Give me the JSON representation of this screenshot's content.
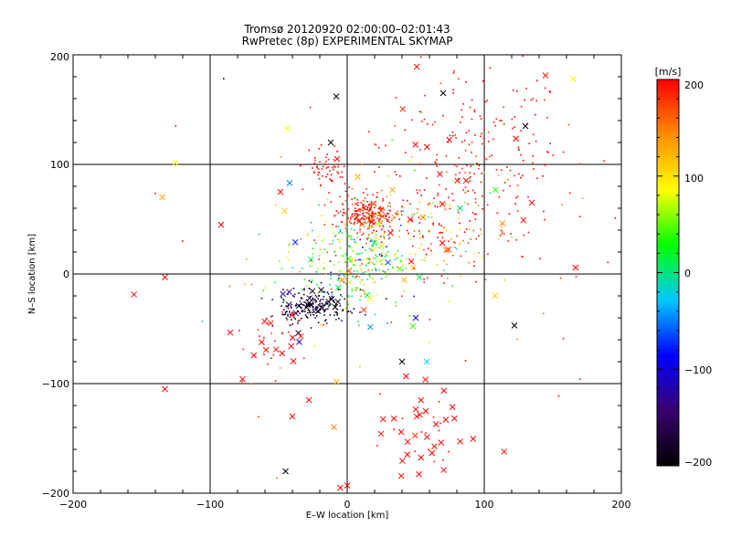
{
  "chart_data": {
    "type": "scatter",
    "title": "Tromsø 20120920 02:00:00–02:01:43",
    "subtitle": "RwPretec (8p) EXPERIMENTAL SKYMAP",
    "xlabel": "E–W location [km]",
    "ylabel": "N–S location [km]",
    "xlim": [
      -200,
      200
    ],
    "ylim": [
      -200,
      200
    ],
    "x_ticks": [
      "−200",
      "−100",
      "0",
      "100",
      "200"
    ],
    "y_ticks": [
      "−200",
      "−100",
      "0",
      "100",
      "200"
    ],
    "grid_lines": [
      -100,
      0,
      100
    ],
    "colorbar": {
      "label": "[m/s]",
      "range": [
        -200,
        200
      ],
      "ticks": [
        "−200",
        "−100",
        "0",
        "100",
        "200"
      ],
      "colors": [
        "#000000",
        "#3a0070",
        "#0000ff",
        "#00c8ff",
        "#00ff00",
        "#ffff00",
        "#ff8c00",
        "#ff0000"
      ]
    },
    "marker_types": [
      "dot",
      "cross"
    ],
    "clusters": [
      {
        "name": "northeast",
        "cx": 95,
        "cy": 100,
        "sx": 35,
        "sy": 45,
        "n": 260,
        "v_mean": 200,
        "v_sd": 12,
        "cross_frac": 0.06
      },
      {
        "name": "north-center",
        "cx": 15,
        "cy": 55,
        "sx": 12,
        "sy": 8,
        "n": 230,
        "v_mean": 195,
        "v_sd": 20,
        "cross_frac": 0.05
      },
      {
        "name": "north-west",
        "cx": -15,
        "cy": 95,
        "sx": 8,
        "sy": 10,
        "n": 60,
        "v_mean": 200,
        "v_sd": 8,
        "cross_frac": 0.05
      },
      {
        "name": "center",
        "cx": 5,
        "cy": 10,
        "sx": 22,
        "sy": 22,
        "n": 320,
        "v_mean": 40,
        "v_sd": 70,
        "cross_frac": 0.03
      },
      {
        "name": "east-mid",
        "cx": 60,
        "cy": 40,
        "sx": 30,
        "sy": 25,
        "n": 140,
        "v_mean": 140,
        "v_sd": 70,
        "cross_frac": 0.05
      },
      {
        "name": "southwest-dark",
        "cx": -25,
        "cy": -30,
        "sx": 14,
        "sy": 9,
        "n": 200,
        "v_mean": -175,
        "v_sd": 30,
        "cross_frac": 0.08
      },
      {
        "name": "southwest-arm",
        "cx": -55,
        "cy": -65,
        "sx": 12,
        "sy": 18,
        "n": 35,
        "v_mean": 200,
        "v_sd": 10,
        "cross_frac": 0.4
      },
      {
        "name": "south-east",
        "cx": 55,
        "cy": -140,
        "sx": 18,
        "sy": 22,
        "n": 45,
        "v_mean": 200,
        "v_sd": 10,
        "cross_frac": 0.6
      },
      {
        "name": "scatter",
        "cx": 20,
        "cy": 20,
        "sx": 80,
        "sy": 80,
        "n": 90,
        "v_mean": 160,
        "v_sd": 80,
        "cross_frac": 0.3
      }
    ],
    "notable_points": [
      {
        "x": -133,
        "y": -105,
        "v": 200,
        "marker": "cross"
      },
      {
        "x": -133,
        "y": -3,
        "v": 200,
        "marker": "cross"
      },
      {
        "x": -45,
        "y": -180,
        "v": -200,
        "marker": "cross"
      },
      {
        "x": -8,
        "y": 162,
        "v": -200,
        "marker": "cross"
      },
      {
        "x": -12,
        "y": 120,
        "v": -200,
        "marker": "cross"
      },
      {
        "x": 165,
        "y": 178,
        "v": 90,
        "marker": "cross"
      },
      {
        "x": 70,
        "y": 165,
        "v": -200,
        "marker": "cross"
      },
      {
        "x": 130,
        "y": 135,
        "v": -200,
        "marker": "cross"
      },
      {
        "x": 122,
        "y": -47,
        "v": -200,
        "marker": "cross"
      },
      {
        "x": 40,
        "y": -80,
        "v": -200,
        "marker": "cross"
      },
      {
        "x": -42,
        "y": 83,
        "v": -50,
        "marker": "cross"
      },
      {
        "x": -35,
        "y": -62,
        "v": -120,
        "marker": "cross"
      },
      {
        "x": 50,
        "y": -40,
        "v": -100,
        "marker": "cross"
      },
      {
        "x": 58,
        "y": -80,
        "v": -30,
        "marker": "cross"
      },
      {
        "x": 0,
        "y": -193,
        "v": 200,
        "marker": "cross"
      },
      {
        "x": -5,
        "y": -195,
        "v": 200,
        "marker": "cross"
      },
      {
        "x": -28,
        "y": -115,
        "v": 200,
        "marker": "cross"
      },
      {
        "x": -40,
        "y": -130,
        "v": 200,
        "marker": "cross"
      },
      {
        "x": -92,
        "y": 45,
        "v": 200,
        "marker": "cross"
      },
      {
        "x": -90,
        "y": 178,
        "v": -200,
        "marker": "dot"
      },
      {
        "x": -125,
        "y": 135,
        "v": 200,
        "marker": "dot"
      },
      {
        "x": 108,
        "y": -20,
        "v": 110,
        "marker": "cross"
      }
    ]
  }
}
